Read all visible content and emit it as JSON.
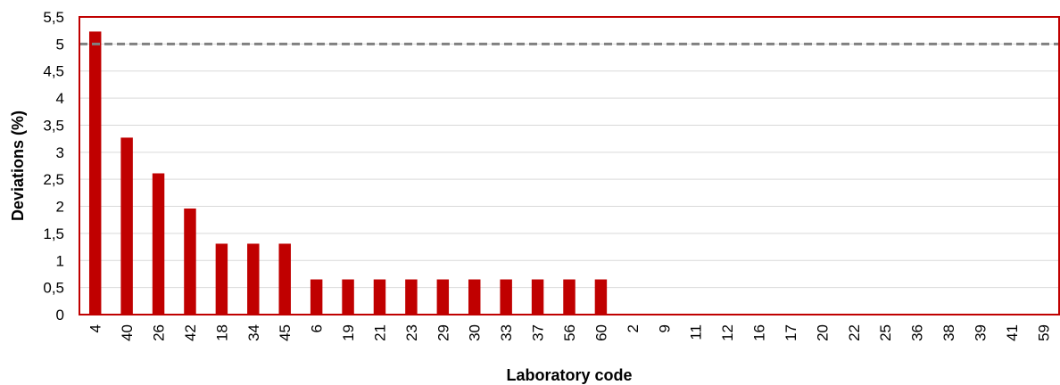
{
  "chart_data": {
    "type": "bar",
    "title": "",
    "xlabel": "Laboratory code",
    "ylabel": "Deviations (%)",
    "ylim": [
      0,
      5.5
    ],
    "ystep": 0.5,
    "grid": true,
    "categories": [
      "4",
      "40",
      "26",
      "42",
      "18",
      "34",
      "45",
      "6",
      "19",
      "21",
      "23",
      "29",
      "30",
      "33",
      "37",
      "56",
      "60",
      "2",
      "9",
      "11",
      "12",
      "16",
      "17",
      "20",
      "22",
      "25",
      "36",
      "38",
      "39",
      "41",
      "59"
    ],
    "values": [
      5.23,
      3.27,
      2.61,
      1.96,
      1.31,
      1.31,
      1.31,
      0.65,
      0.65,
      0.65,
      0.65,
      0.65,
      0.65,
      0.65,
      0.65,
      0.65,
      0.65,
      0,
      0,
      0,
      0,
      0,
      0,
      0,
      0,
      0,
      0,
      0,
      0,
      0,
      0
    ],
    "reference_line": 5,
    "bar_color": "#c00000",
    "frame_color": "#c00000",
    "grid_color": "#d9d9d9",
    "reference_line_color": "#808080"
  }
}
